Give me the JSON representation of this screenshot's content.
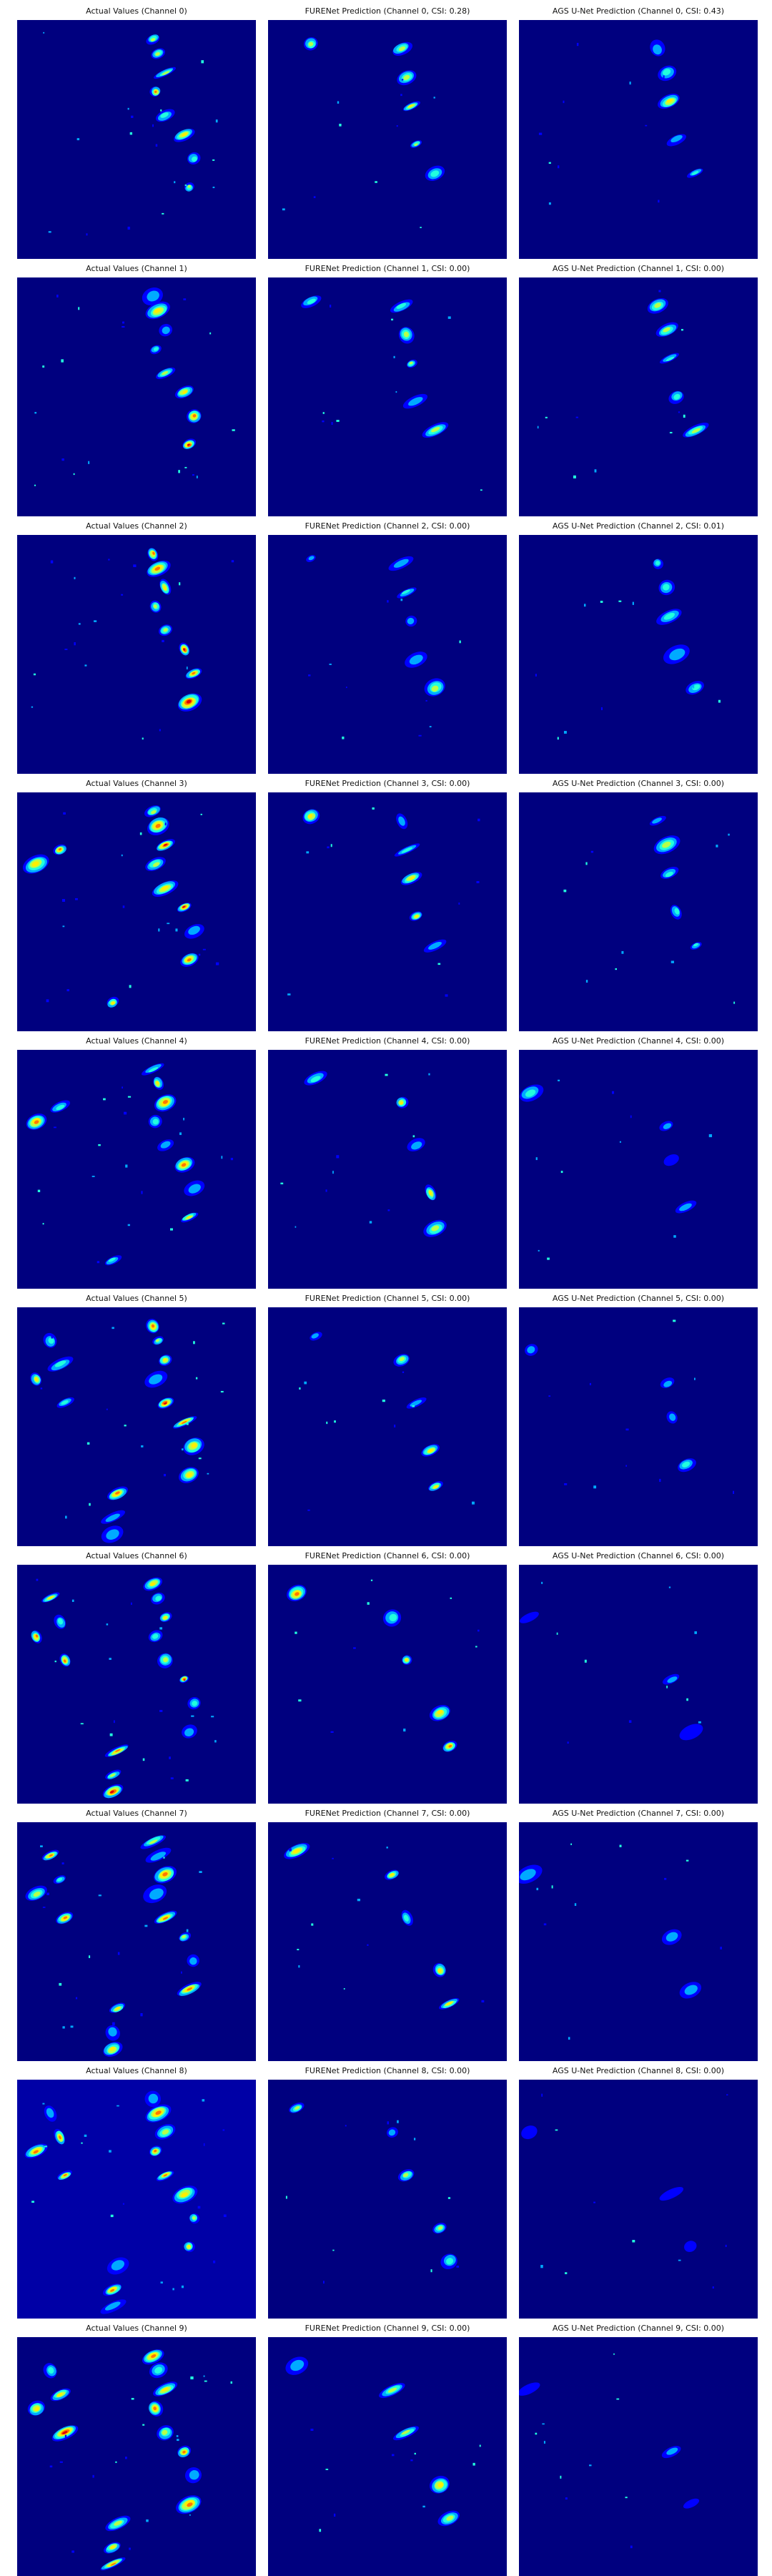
{
  "columns": [
    {
      "key": "actual",
      "title_tpl": "Actual Values (Channel {c})"
    },
    {
      "key": "furenet",
      "title_tpl": "FURENet Prediction (Channel {c}, CSI: {csi})"
    },
    {
      "key": "agsunet",
      "title_tpl": "AGS U-Net Prediction (Channel {c}, CSI: {csi})"
    }
  ],
  "rows": [
    {
      "channel": 0,
      "titles": [
        "Actual Values (Channel 0)",
        "FURENet Prediction (Channel 0, CSI: 0.28)",
        "AGS U-Net Prediction (Channel 0, CSI: 0.43)"
      ]
    },
    {
      "channel": 1,
      "titles": [
        "Actual Values (Channel 1)",
        "FURENet Prediction (Channel 1, CSI: 0.00)",
        "AGS U-Net Prediction (Channel 1, CSI: 0.00)"
      ]
    },
    {
      "channel": 2,
      "titles": [
        "Actual Values (Channel 2)",
        "FURENet Prediction (Channel 2, CSI: 0.00)",
        "AGS U-Net Prediction (Channel 2, CSI: 0.01)"
      ]
    },
    {
      "channel": 3,
      "titles": [
        "Actual Values (Channel 3)",
        "FURENet Prediction (Channel 3, CSI: 0.00)",
        "AGS U-Net Prediction (Channel 3, CSI: 0.00)"
      ]
    },
    {
      "channel": 4,
      "titles": [
        "Actual Values (Channel 4)",
        "FURENet Prediction (Channel 4, CSI: 0.00)",
        "AGS U-Net Prediction (Channel 4, CSI: 0.00)"
      ]
    },
    {
      "channel": 5,
      "titles": [
        "Actual Values (Channel 5)",
        "FURENet Prediction (Channel 5, CSI: 0.00)",
        "AGS U-Net Prediction (Channel 5, CSI: 0.00)"
      ]
    },
    {
      "channel": 6,
      "titles": [
        "Actual Values (Channel 6)",
        "FURENet Prediction (Channel 6, CSI: 0.00)",
        "AGS U-Net Prediction (Channel 6, CSI: 0.00)"
      ]
    },
    {
      "channel": 7,
      "titles": [
        "Actual Values (Channel 7)",
        "FURENet Prediction (Channel 7, CSI: 0.00)",
        "AGS U-Net Prediction (Channel 7, CSI: 0.00)"
      ]
    },
    {
      "channel": 8,
      "titles": [
        "Actual Values (Channel 8)",
        "FURENet Prediction (Channel 8, CSI: 0.00)",
        "AGS U-Net Prediction (Channel 8, CSI: 0.00)"
      ]
    },
    {
      "channel": 9,
      "titles": [
        "Actual Values (Channel 9)",
        "FURENet Prediction (Channel 9, CSI: 0.00)",
        "AGS U-Net Prediction (Channel 9, CSI: 0.00)"
      ]
    }
  ],
  "colors": {
    "background": "#00007f",
    "background_ch8_actual": "#0000a6",
    "cmap": [
      "#0000ff",
      "#00aaff",
      "#22ffdd",
      "#b6ff49",
      "#ffee00",
      "#ff7700",
      "#e00000"
    ]
  }
}
